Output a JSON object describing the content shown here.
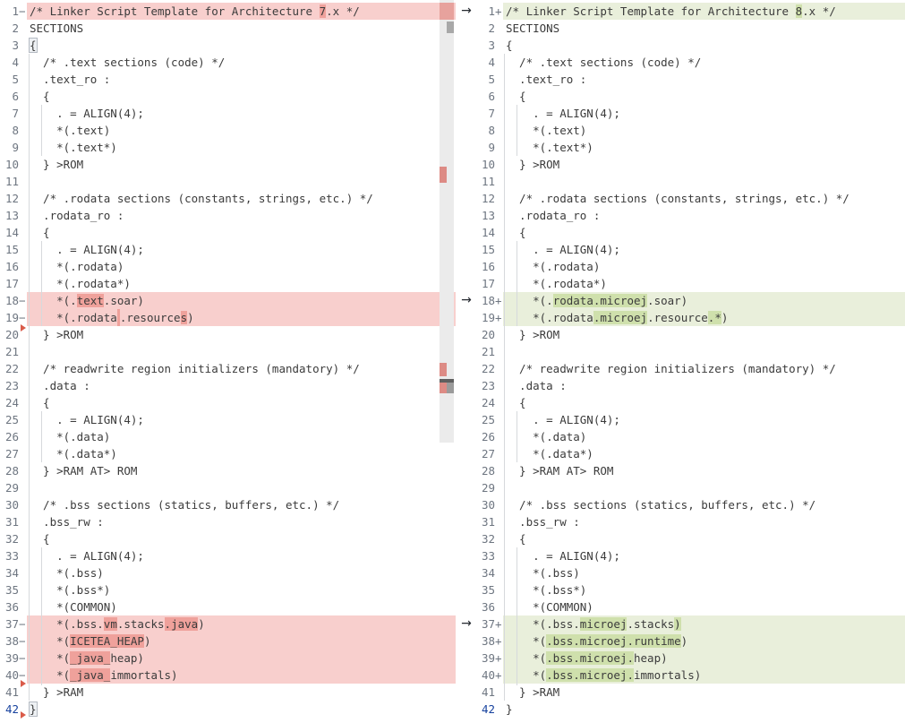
{
  "window": {
    "type": "side-by-side-diff-editor"
  },
  "colors": {
    "deleted_line_bg": "#f8cfcd",
    "deleted_char_bg": "#efa19b",
    "added_line_bg": "#e9efdb",
    "added_char_bg": "#cfe0ac",
    "code_text": "#3b3b3b",
    "line_number": "#6e7681",
    "active_line_number": "#17429e",
    "ruler_change_red": "#dd8b85",
    "delete_marker_red": "#da5b49"
  },
  "left_pane": {
    "role": "original",
    "lines": [
      {
        "n": "1",
        "m": "-",
        "t": "del",
        "s": [
          [
            "/* Linker Script Template for Architecture ",
            0
          ],
          [
            "7",
            1
          ],
          [
            ".x */",
            0
          ]
        ]
      },
      {
        "n": "2",
        "m": "",
        "t": "",
        "s": [
          [
            "SECTIONS",
            0
          ]
        ]
      },
      {
        "n": "3",
        "m": "",
        "t": "",
        "s": [
          [
            "{",
            3
          ]
        ]
      },
      {
        "n": "4",
        "m": "",
        "t": "",
        "s": [
          [
            "  /* .text sections (code) */",
            0
          ]
        ]
      },
      {
        "n": "5",
        "m": "",
        "t": "",
        "s": [
          [
            "  .text_ro :",
            0
          ]
        ]
      },
      {
        "n": "6",
        "m": "",
        "t": "",
        "s": [
          [
            "  {",
            0
          ]
        ]
      },
      {
        "n": "7",
        "m": "",
        "t": "",
        "s": [
          [
            "    . = ALIGN(4);",
            0
          ]
        ]
      },
      {
        "n": "8",
        "m": "",
        "t": "",
        "s": [
          [
            "    *(.text)",
            0
          ]
        ]
      },
      {
        "n": "9",
        "m": "",
        "t": "",
        "s": [
          [
            "    *(.text*)",
            0
          ]
        ]
      },
      {
        "n": "10",
        "m": "",
        "t": "",
        "s": [
          [
            "  } >ROM",
            0
          ]
        ]
      },
      {
        "n": "11",
        "m": "",
        "t": "",
        "s": [
          [
            "",
            0
          ]
        ]
      },
      {
        "n": "12",
        "m": "",
        "t": "",
        "s": [
          [
            "  /* .rodata sections (constants, strings, etc.) */",
            0
          ]
        ]
      },
      {
        "n": "13",
        "m": "",
        "t": "",
        "s": [
          [
            "  .rodata_ro :",
            0
          ]
        ]
      },
      {
        "n": "14",
        "m": "",
        "t": "",
        "s": [
          [
            "  {",
            0
          ]
        ]
      },
      {
        "n": "15",
        "m": "",
        "t": "",
        "s": [
          [
            "    . = ALIGN(4);",
            0
          ]
        ]
      },
      {
        "n": "16",
        "m": "",
        "t": "",
        "s": [
          [
            "    *(.rodata)",
            0
          ]
        ]
      },
      {
        "n": "17",
        "m": "",
        "t": "",
        "s": [
          [
            "    *(.rodata*)",
            0
          ]
        ]
      },
      {
        "n": "18",
        "m": "-",
        "t": "del",
        "s": [
          [
            "    *(.",
            0
          ],
          [
            "text",
            1
          ],
          [
            ".soar)",
            0
          ]
        ]
      },
      {
        "n": "19",
        "m": "-",
        "t": "del",
        "s": [
          [
            "    *(.rodata",
            0
          ],
          [
            "",
            2
          ],
          [
            ".resource",
            0
          ],
          [
            "s",
            1
          ],
          [
            ")",
            0
          ]
        ]
      },
      {
        "n": "20",
        "m": "",
        "t": "",
        "s": [
          [
            "  } >ROM",
            0
          ]
        ]
      },
      {
        "n": "21",
        "m": "",
        "t": "",
        "s": [
          [
            "",
            0
          ]
        ]
      },
      {
        "n": "22",
        "m": "",
        "t": "",
        "s": [
          [
            "  /* readwrite region initializers (mandatory) */",
            0
          ]
        ]
      },
      {
        "n": "23",
        "m": "",
        "t": "",
        "s": [
          [
            "  .data :",
            0
          ]
        ]
      },
      {
        "n": "24",
        "m": "",
        "t": "",
        "s": [
          [
            "  {",
            0
          ]
        ]
      },
      {
        "n": "25",
        "m": "",
        "t": "",
        "s": [
          [
            "    . = ALIGN(4);",
            0
          ]
        ]
      },
      {
        "n": "26",
        "m": "",
        "t": "",
        "s": [
          [
            "    *(.data)",
            0
          ]
        ]
      },
      {
        "n": "27",
        "m": "",
        "t": "",
        "s": [
          [
            "    *(.data*)",
            0
          ]
        ]
      },
      {
        "n": "28",
        "m": "",
        "t": "",
        "s": [
          [
            "  } >RAM AT> ROM",
            0
          ]
        ]
      },
      {
        "n": "29",
        "m": "",
        "t": "",
        "s": [
          [
            "",
            0
          ]
        ]
      },
      {
        "n": "30",
        "m": "",
        "t": "",
        "s": [
          [
            "  /* .bss sections (statics, buffers, etc.) */",
            0
          ]
        ]
      },
      {
        "n": "31",
        "m": "",
        "t": "",
        "s": [
          [
            "  .bss_rw :",
            0
          ]
        ]
      },
      {
        "n": "32",
        "m": "",
        "t": "",
        "s": [
          [
            "  {",
            0
          ]
        ]
      },
      {
        "n": "33",
        "m": "",
        "t": "",
        "s": [
          [
            "    . = ALIGN(4);",
            0
          ]
        ]
      },
      {
        "n": "34",
        "m": "",
        "t": "",
        "s": [
          [
            "    *(.bss)",
            0
          ]
        ]
      },
      {
        "n": "35",
        "m": "",
        "t": "",
        "s": [
          [
            "    *(.bss*)",
            0
          ]
        ]
      },
      {
        "n": "36",
        "m": "",
        "t": "",
        "s": [
          [
            "    *(COMMON)",
            0
          ]
        ]
      },
      {
        "n": "37",
        "m": "-",
        "t": "del",
        "s": [
          [
            "    *(.bss.",
            0
          ],
          [
            "vm",
            1
          ],
          [
            ".stacks",
            0
          ],
          [
            ".java",
            1
          ],
          [
            ")",
            0
          ]
        ]
      },
      {
        "n": "38",
        "m": "-",
        "t": "del",
        "s": [
          [
            "    *(",
            0
          ],
          [
            "ICETEA_HEAP",
            1
          ],
          [
            ")",
            0
          ]
        ]
      },
      {
        "n": "39",
        "m": "-",
        "t": "del",
        "s": [
          [
            "    *(",
            0
          ],
          [
            "_java_",
            1
          ],
          [
            "heap)",
            0
          ]
        ]
      },
      {
        "n": "40",
        "m": "-",
        "t": "del",
        "s": [
          [
            "    *(",
            0
          ],
          [
            "_java_",
            1
          ],
          [
            "immortals)",
            0
          ]
        ]
      },
      {
        "n": "41",
        "m": "",
        "t": "",
        "s": [
          [
            "  } >RAM",
            0
          ]
        ]
      },
      {
        "n": "42",
        "m": "",
        "t": "",
        "active": true,
        "s": [
          [
            "}",
            3
          ]
        ]
      }
    ]
  },
  "right_pane": {
    "role": "modified",
    "change_arrow_rows": [
      1,
      18,
      37
    ],
    "lines": [
      {
        "n": "1",
        "m": "+",
        "t": "add",
        "s": [
          [
            "/* Linker Script Template for Architecture ",
            0
          ],
          [
            "8",
            1
          ],
          [
            ".x */",
            0
          ]
        ]
      },
      {
        "n": "2",
        "m": "",
        "t": "",
        "s": [
          [
            "SECTIONS",
            0
          ]
        ]
      },
      {
        "n": "3",
        "m": "",
        "t": "",
        "s": [
          [
            "{",
            0
          ]
        ]
      },
      {
        "n": "4",
        "m": "",
        "t": "",
        "s": [
          [
            "  /* .text sections (code) */",
            0
          ]
        ]
      },
      {
        "n": "5",
        "m": "",
        "t": "",
        "s": [
          [
            "  .text_ro :",
            0
          ]
        ]
      },
      {
        "n": "6",
        "m": "",
        "t": "",
        "s": [
          [
            "  {",
            0
          ]
        ]
      },
      {
        "n": "7",
        "m": "",
        "t": "",
        "s": [
          [
            "    . = ALIGN(4);",
            0
          ]
        ]
      },
      {
        "n": "8",
        "m": "",
        "t": "",
        "s": [
          [
            "    *(.text)",
            0
          ]
        ]
      },
      {
        "n": "9",
        "m": "",
        "t": "",
        "s": [
          [
            "    *(.text*)",
            0
          ]
        ]
      },
      {
        "n": "10",
        "m": "",
        "t": "",
        "s": [
          [
            "  } >ROM",
            0
          ]
        ]
      },
      {
        "n": "11",
        "m": "",
        "t": "",
        "s": [
          [
            "",
            0
          ]
        ]
      },
      {
        "n": "12",
        "m": "",
        "t": "",
        "s": [
          [
            "  /* .rodata sections (constants, strings, etc.) */",
            0
          ]
        ]
      },
      {
        "n": "13",
        "m": "",
        "t": "",
        "s": [
          [
            "  .rodata_ro :",
            0
          ]
        ]
      },
      {
        "n": "14",
        "m": "",
        "t": "",
        "s": [
          [
            "  {",
            0
          ]
        ]
      },
      {
        "n": "15",
        "m": "",
        "t": "",
        "s": [
          [
            "    . = ALIGN(4);",
            0
          ]
        ]
      },
      {
        "n": "16",
        "m": "",
        "t": "",
        "s": [
          [
            "    *(.rodata)",
            0
          ]
        ]
      },
      {
        "n": "17",
        "m": "",
        "t": "",
        "s": [
          [
            "    *(.rodata*)",
            0
          ]
        ]
      },
      {
        "n": "18",
        "m": "+",
        "t": "add",
        "s": [
          [
            "    *(.",
            0
          ],
          [
            "rodata.microej",
            1
          ],
          [
            ".soar)",
            0
          ]
        ]
      },
      {
        "n": "19",
        "m": "+",
        "t": "add",
        "s": [
          [
            "    *(.rodata",
            0
          ],
          [
            ".microej",
            1
          ],
          [
            ".resource",
            0
          ],
          [
            ".*",
            1
          ],
          [
            ")",
            0
          ]
        ]
      },
      {
        "n": "20",
        "m": "",
        "t": "",
        "s": [
          [
            "  } >ROM",
            0
          ]
        ]
      },
      {
        "n": "21",
        "m": "",
        "t": "",
        "s": [
          [
            "",
            0
          ]
        ]
      },
      {
        "n": "22",
        "m": "",
        "t": "",
        "s": [
          [
            "  /* readwrite region initializers (mandatory) */",
            0
          ]
        ]
      },
      {
        "n": "23",
        "m": "",
        "t": "",
        "s": [
          [
            "  .data :",
            0
          ]
        ]
      },
      {
        "n": "24",
        "m": "",
        "t": "",
        "s": [
          [
            "  {",
            0
          ]
        ]
      },
      {
        "n": "25",
        "m": "",
        "t": "",
        "s": [
          [
            "    . = ALIGN(4);",
            0
          ]
        ]
      },
      {
        "n": "26",
        "m": "",
        "t": "",
        "s": [
          [
            "    *(.data)",
            0
          ]
        ]
      },
      {
        "n": "27",
        "m": "",
        "t": "",
        "s": [
          [
            "    *(.data*)",
            0
          ]
        ]
      },
      {
        "n": "28",
        "m": "",
        "t": "",
        "s": [
          [
            "  } >RAM AT> ROM",
            0
          ]
        ]
      },
      {
        "n": "29",
        "m": "",
        "t": "",
        "s": [
          [
            "",
            0
          ]
        ]
      },
      {
        "n": "30",
        "m": "",
        "t": "",
        "s": [
          [
            "  /* .bss sections (statics, buffers, etc.) */",
            0
          ]
        ]
      },
      {
        "n": "31",
        "m": "",
        "t": "",
        "s": [
          [
            "  .bss_rw :",
            0
          ]
        ]
      },
      {
        "n": "32",
        "m": "",
        "t": "",
        "s": [
          [
            "  {",
            0
          ]
        ]
      },
      {
        "n": "33",
        "m": "",
        "t": "",
        "s": [
          [
            "    . = ALIGN(4);",
            0
          ]
        ]
      },
      {
        "n": "34",
        "m": "",
        "t": "",
        "s": [
          [
            "    *(.bss)",
            0
          ]
        ]
      },
      {
        "n": "35",
        "m": "",
        "t": "",
        "s": [
          [
            "    *(.bss*)",
            0
          ]
        ]
      },
      {
        "n": "36",
        "m": "",
        "t": "",
        "s": [
          [
            "    *(COMMON)",
            0
          ]
        ]
      },
      {
        "n": "37",
        "m": "+",
        "t": "add",
        "s": [
          [
            "    *(.bss.",
            0
          ],
          [
            "microej",
            1
          ],
          [
            ".stacks",
            0
          ],
          [
            ")",
            1
          ]
        ]
      },
      {
        "n": "38",
        "m": "+",
        "t": "add",
        "s": [
          [
            "    *(",
            0
          ],
          [
            ".bss.microej.runtime",
            1
          ],
          [
            ")",
            0
          ]
        ]
      },
      {
        "n": "39",
        "m": "+",
        "t": "add",
        "s": [
          [
            "    *(",
            0
          ],
          [
            ".bss.microej.",
            1
          ],
          [
            "heap)",
            0
          ]
        ]
      },
      {
        "n": "40",
        "m": "+",
        "t": "add",
        "s": [
          [
            "    *(",
            0
          ],
          [
            ".bss.microej.",
            1
          ],
          [
            "immortals)",
            0
          ]
        ]
      },
      {
        "n": "41",
        "m": "",
        "t": "",
        "s": [
          [
            "  } >RAM",
            0
          ]
        ]
      },
      {
        "n": "42",
        "m": "",
        "t": "",
        "active": true,
        "s": [
          [
            "}",
            0
          ]
        ]
      }
    ]
  }
}
